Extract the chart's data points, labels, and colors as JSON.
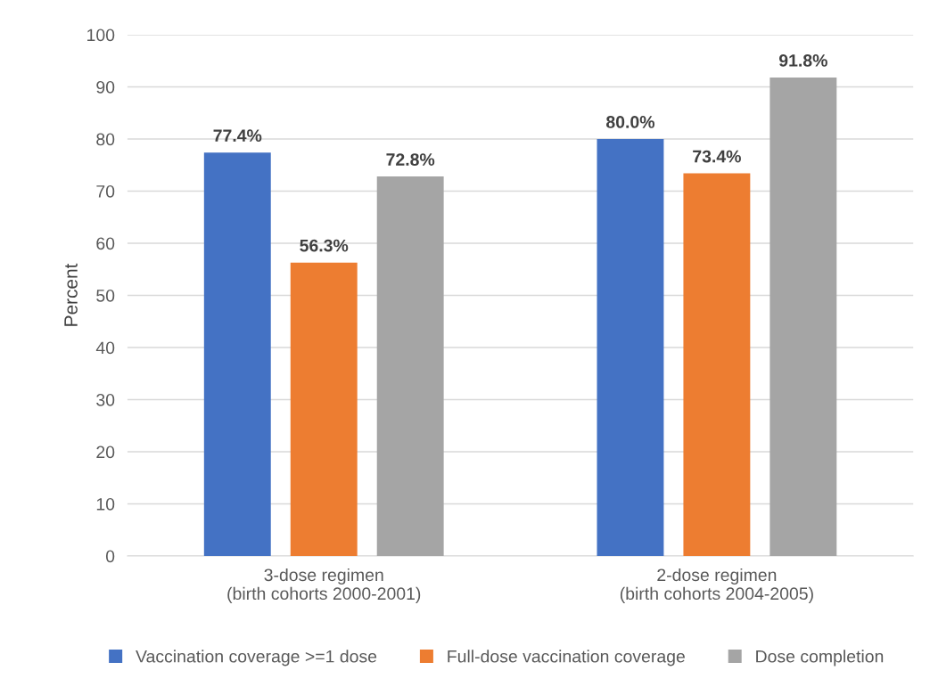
{
  "chart_data": {
    "type": "bar",
    "ylabel": "Percent",
    "categories": [
      "3-dose regimen\n(birth cohorts 2000-2001)",
      "2-dose regimen\n(birth cohorts 2004-2005)"
    ],
    "series": [
      {
        "name": "Vaccination coverage >=1 dose",
        "color": "#4472c4",
        "values": [
          77.4,
          80.0
        ],
        "value_labels": [
          "77.4%",
          "80.0%"
        ]
      },
      {
        "name": "Full-dose vaccination coverage",
        "color": "#ed7d31",
        "values": [
          56.3,
          73.4
        ],
        "value_labels": [
          "56.3%",
          "73.4%"
        ]
      },
      {
        "name": "Dose completion",
        "color": "#a5a5a5",
        "values": [
          72.8,
          91.8
        ],
        "value_labels": [
          "72.8%",
          "91.8%"
        ]
      }
    ],
    "ylim": [
      0,
      100
    ],
    "yticks": [
      0,
      10,
      20,
      30,
      40,
      50,
      60,
      70,
      80,
      90,
      100
    ],
    "grid": "y",
    "legend": "bottom"
  }
}
